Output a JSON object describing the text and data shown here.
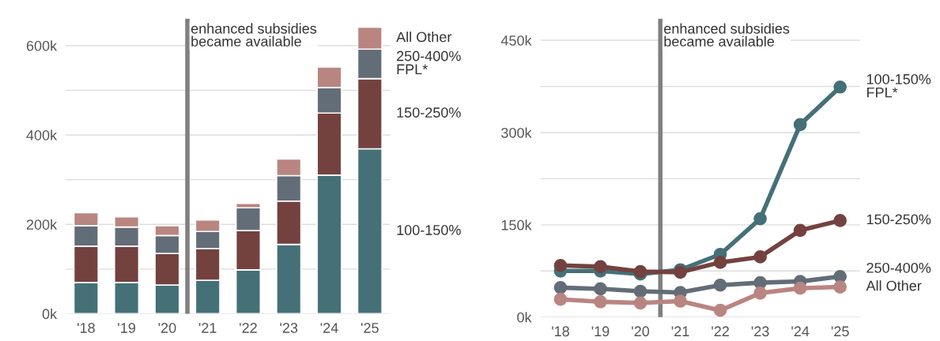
{
  "chart_data": [
    {
      "type": "bar",
      "stacked": true,
      "x": [
        2018,
        2019,
        2020,
        2021,
        2022,
        2023,
        2024,
        2025
      ],
      "xlim": [
        2017.5,
        2025.5
      ],
      "xticks": [
        {
          "value": 2018,
          "label": "'18"
        },
        {
          "value": 2019,
          "label": "'19"
        },
        {
          "value": 2020,
          "label": "'20"
        },
        {
          "value": 2021,
          "label": "'21"
        },
        {
          "value": 2022,
          "label": "'22"
        },
        {
          "value": 2023,
          "label": "'23"
        },
        {
          "value": 2024,
          "label": "'24"
        },
        {
          "value": 2025,
          "label": "'25"
        }
      ],
      "series": [
        {
          "name": "100-150%",
          "color": "#457078",
          "values": [
            70,
            70,
            64,
            75,
            98,
            155,
            310,
            369
          ]
        },
        {
          "name": "150-250%",
          "color": "#73423f",
          "values": [
            81,
            81,
            71,
            71,
            88,
            97,
            139,
            157
          ]
        },
        {
          "name": "250-400%\nFPL*",
          "color": "#636d77",
          "values": [
            46,
            43,
            40,
            38,
            51,
            57,
            57,
            66
          ]
        },
        {
          "name": "All Other",
          "color": "#b98580",
          "values": [
            29,
            23,
            22,
            26,
            10,
            37,
            46,
            49
          ]
        }
      ],
      "ylim": [
        0,
        660
      ],
      "yticks": [
        {
          "value": 0,
          "label": "0k"
        },
        {
          "value": 100,
          "label": null
        },
        {
          "value": 200,
          "label": "200k"
        },
        {
          "value": 300,
          "label": null
        },
        {
          "value": 400,
          "label": "400k"
        },
        {
          "value": 500,
          "label": null
        },
        {
          "value": 600,
          "label": "600k"
        }
      ],
      "grid": "y",
      "legend": false,
      "ref_lines": [
        {
          "axis": "x",
          "value": 2020.5,
          "label": "enhanced subsidies\nbecame available",
          "color": "#808080"
        }
      ]
    },
    {
      "type": "line",
      "x": [
        2018,
        2019,
        2020,
        2021,
        2022,
        2023,
        2024,
        2025
      ],
      "marker": "circle",
      "xlim": [
        2017.5,
        2025.5
      ],
      "xticks": [
        {
          "value": 2018,
          "label": "'18"
        },
        {
          "value": 2019,
          "label": "'19"
        },
        {
          "value": 2020,
          "label": "'20"
        },
        {
          "value": 2021,
          "label": "'21"
        },
        {
          "value": 2022,
          "label": "'22"
        },
        {
          "value": 2023,
          "label": "'23"
        },
        {
          "value": 2024,
          "label": "'24"
        },
        {
          "value": 2025,
          "label": "'25"
        }
      ],
      "series": [
        {
          "name": "100-150%\nFPL*",
          "color": "#457078",
          "values": [
            75,
            75,
            70,
            77,
            102,
            160,
            313,
            374
          ]
        },
        {
          "name": "150-250%",
          "color": "#73423f",
          "values": [
            84,
            82,
            74,
            73,
            89,
            98,
            141,
            157
          ]
        },
        {
          "name": "250-400%",
          "color": "#636d77",
          "values": [
            48,
            46,
            42,
            40,
            52,
            56,
            58,
            66
          ]
        },
        {
          "name": "All Other",
          "color": "#b98580",
          "values": [
            29,
            25,
            23,
            26,
            11,
            39,
            47,
            49
          ]
        }
      ],
      "ylim": [
        0,
        485
      ],
      "yticks": [
        {
          "value": 0,
          "label": "0k"
        },
        {
          "value": 75,
          "label": null
        },
        {
          "value": 150,
          "label": "150k"
        },
        {
          "value": 225,
          "label": null
        },
        {
          "value": 300,
          "label": "300k"
        },
        {
          "value": 375,
          "label": null
        },
        {
          "value": 450,
          "label": "450k"
        }
      ],
      "grid": "y",
      "legend": false,
      "ref_lines": [
        {
          "axis": "x",
          "value": 2020.5,
          "label": "enhanced subsidies\nbecame available",
          "color": "#808080"
        }
      ]
    }
  ]
}
